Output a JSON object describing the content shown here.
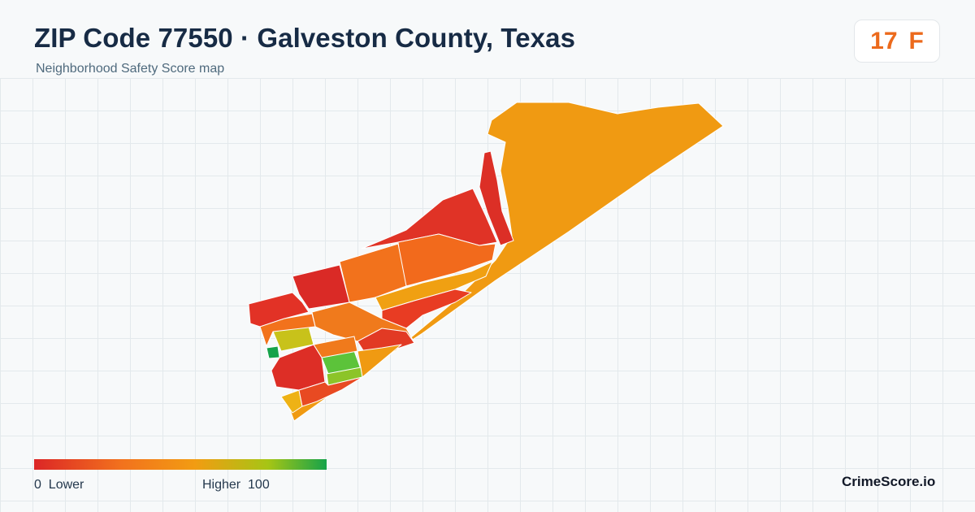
{
  "header": {
    "title": "ZIP Code 77550 · Galveston County, Texas",
    "subtitle": "Neighborhood Safety Score map"
  },
  "score": {
    "value": "17",
    "grade": "F",
    "color": "#ec6a1c"
  },
  "map": {
    "areas": [
      {
        "id": "east-end-bay",
        "score_color": "#f09a12"
      },
      {
        "id": "north-strip-a",
        "score_color": "#dc2f26"
      },
      {
        "id": "north-strip-b",
        "score_color": "#e03326"
      },
      {
        "id": "central-north",
        "score_color": "#f26a1c"
      },
      {
        "id": "central-west",
        "score_color": "#f2721c"
      },
      {
        "id": "west-north-a",
        "score_color": "#da2a26"
      },
      {
        "id": "west-north-b",
        "score_color": "#e23226"
      },
      {
        "id": "mid-band",
        "score_color": "#f0a012"
      },
      {
        "id": "mid-east-rows",
        "score_color": "#e83c23"
      },
      {
        "id": "west-green-yellow",
        "score_color": "#c8c21a"
      },
      {
        "id": "west-green",
        "score_color": "#5cc33a"
      },
      {
        "id": "west-lime",
        "score_color": "#8cc429"
      },
      {
        "id": "west-tiny-green",
        "score_color": "#16a34a"
      },
      {
        "id": "south-west-red",
        "score_color": "#dd2e26"
      },
      {
        "id": "south-west-orange",
        "score_color": "#f07a1c"
      },
      {
        "id": "south-west-amber",
        "score_color": "#eeb215"
      }
    ]
  },
  "legend": {
    "min_value": "0",
    "min_label": "Lower",
    "max_label": "Higher",
    "max_value": "100",
    "low_color": "#dc2626",
    "high_color": "#16a34a"
  },
  "brand": "CrimeScore.io"
}
